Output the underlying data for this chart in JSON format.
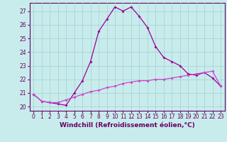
{
  "xlabel": "Windchill (Refroidissement éolien,°C)",
  "ylabel": "",
  "bg_color": "#c8ecec",
  "grid_color": "#aad4d4",
  "line_color1": "#990099",
  "line_color2": "#cc44cc",
  "xlim": [
    -0.5,
    23.5
  ],
  "ylim": [
    19.7,
    27.6
  ],
  "yticks": [
    20,
    21,
    22,
    23,
    24,
    25,
    26,
    27
  ],
  "xticks": [
    0,
    1,
    2,
    3,
    4,
    5,
    6,
    7,
    8,
    9,
    10,
    11,
    12,
    13,
    14,
    15,
    16,
    17,
    18,
    19,
    20,
    21,
    22,
    23
  ],
  "line1_x": [
    0,
    1,
    2,
    3,
    4,
    5,
    6,
    7,
    8,
    9,
    10,
    11,
    12,
    13,
    14,
    15,
    16,
    17,
    18,
    19,
    20,
    21,
    22,
    23
  ],
  "line1_y": [
    20.9,
    20.4,
    20.3,
    20.2,
    20.1,
    21.0,
    21.9,
    23.3,
    25.5,
    26.4,
    27.3,
    27.0,
    27.3,
    26.6,
    25.8,
    24.4,
    23.6,
    23.3,
    23.0,
    22.4,
    22.3,
    22.5,
    22.1,
    21.5
  ],
  "line2_x": [
    0,
    1,
    2,
    3,
    4,
    5,
    6,
    7,
    8,
    9,
    10,
    11,
    12,
    13,
    14,
    15,
    16,
    17,
    18,
    19,
    20,
    21,
    22,
    23
  ],
  "line2_y": [
    20.9,
    20.4,
    20.3,
    20.3,
    20.5,
    20.7,
    20.9,
    21.1,
    21.2,
    21.4,
    21.5,
    21.7,
    21.8,
    21.9,
    21.9,
    22.0,
    22.0,
    22.1,
    22.2,
    22.3,
    22.4,
    22.5,
    22.6,
    21.5
  ],
  "font_size": 6.5,
  "label_size": 5.5,
  "marker": "D",
  "marker_size": 2.0,
  "linewidth": 0.9,
  "spine_color": "#660066",
  "tick_color": "#660066",
  "xlabel_color": "#660066"
}
